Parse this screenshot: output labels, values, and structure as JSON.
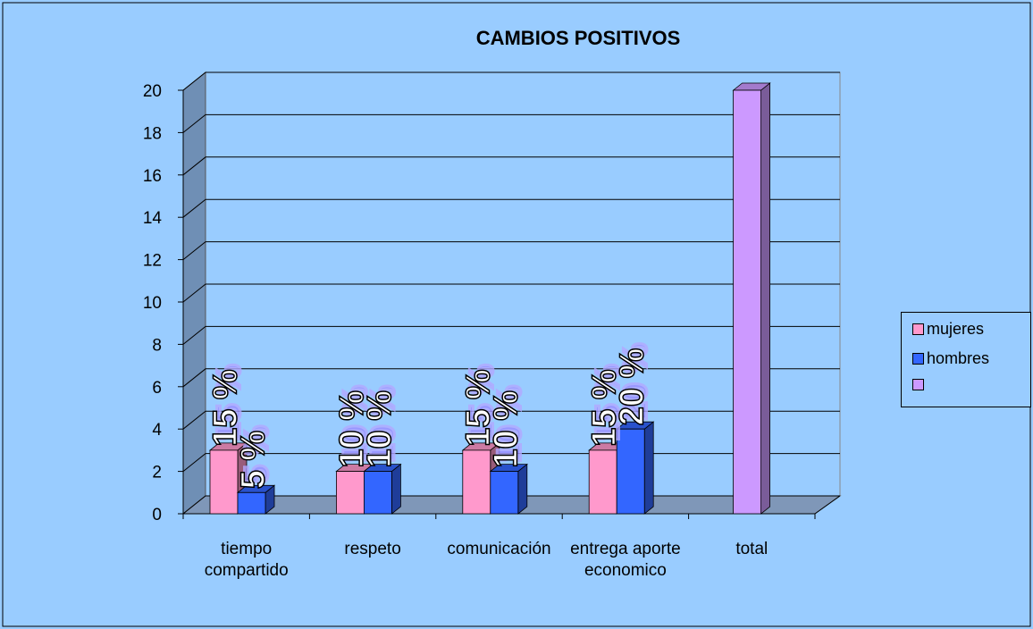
{
  "chart_data": {
    "type": "bar3d",
    "title": "CAMBIOS POSITIVOS",
    "categories": [
      "tiempo compartido",
      "respeto",
      "comunicación",
      "entrega aporte economico",
      "total"
    ],
    "series": [
      {
        "name": "mujeres",
        "color": "#ff99cc",
        "values": [
          3,
          2,
          3,
          3,
          null
        ]
      },
      {
        "name": "hombres",
        "color": "#3366ff",
        "values": [
          1,
          2,
          2,
          4,
          null
        ]
      },
      {
        "color": "#cc99ff",
        "values": [
          null,
          null,
          null,
          null,
          20
        ]
      }
    ],
    "annotations": [
      {
        "text": "15 %",
        "series": 0,
        "category": 0
      },
      {
        "text": "5 %",
        "series": 1,
        "category": 0
      },
      {
        "text": "10 %",
        "series": 0,
        "category": 1
      },
      {
        "text": "10 %",
        "series": 1,
        "category": 1
      },
      {
        "text": "15 %",
        "series": 0,
        "category": 2
      },
      {
        "text": "10 %",
        "series": 1,
        "category": 2
      },
      {
        "text": "15 %",
        "series": 0,
        "category": 3
      },
      {
        "text": "20 %",
        "series": 1,
        "category": 3
      }
    ],
    "ylim": [
      0,
      20
    ],
    "yticks": [
      0,
      2,
      4,
      6,
      8,
      10,
      12,
      14,
      16,
      18,
      20
    ],
    "grid": true,
    "legend": "right"
  }
}
